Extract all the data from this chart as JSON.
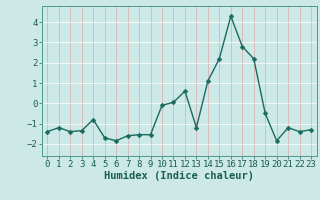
{
  "x": [
    0,
    1,
    2,
    3,
    4,
    5,
    6,
    7,
    8,
    9,
    10,
    11,
    12,
    13,
    14,
    15,
    16,
    17,
    18,
    19,
    20,
    21,
    22,
    23
  ],
  "y": [
    -1.4,
    -1.2,
    -1.4,
    -1.35,
    -0.8,
    -1.7,
    -1.85,
    -1.6,
    -1.55,
    -1.55,
    -0.1,
    0.05,
    0.6,
    -1.2,
    1.1,
    2.2,
    4.3,
    2.8,
    2.2,
    -0.5,
    -1.85,
    -1.2,
    -1.4,
    -1.3
  ],
  "line_color": "#1a6b5e",
  "marker": "D",
  "markersize": 2.5,
  "linewidth": 1.0,
  "xlabel": "Humidex (Indice chaleur)",
  "background_color": "#cce9e7",
  "grid_h_color": "#ffffff",
  "grid_v_color": "#dba8a8",
  "axis_color": "#4a9a8a",
  "tick_color": "#1a6b5e",
  "label_color": "#1a5e52",
  "xlim": [
    -0.5,
    23.5
  ],
  "ylim": [
    -2.6,
    4.8
  ],
  "yticks": [
    -2,
    -1,
    0,
    1,
    2,
    3,
    4
  ],
  "xticks": [
    0,
    1,
    2,
    3,
    4,
    5,
    6,
    7,
    8,
    9,
    10,
    11,
    12,
    13,
    14,
    15,
    16,
    17,
    18,
    19,
    20,
    21,
    22,
    23
  ],
  "xlabel_fontsize": 7.5,
  "tick_fontsize": 6.5
}
